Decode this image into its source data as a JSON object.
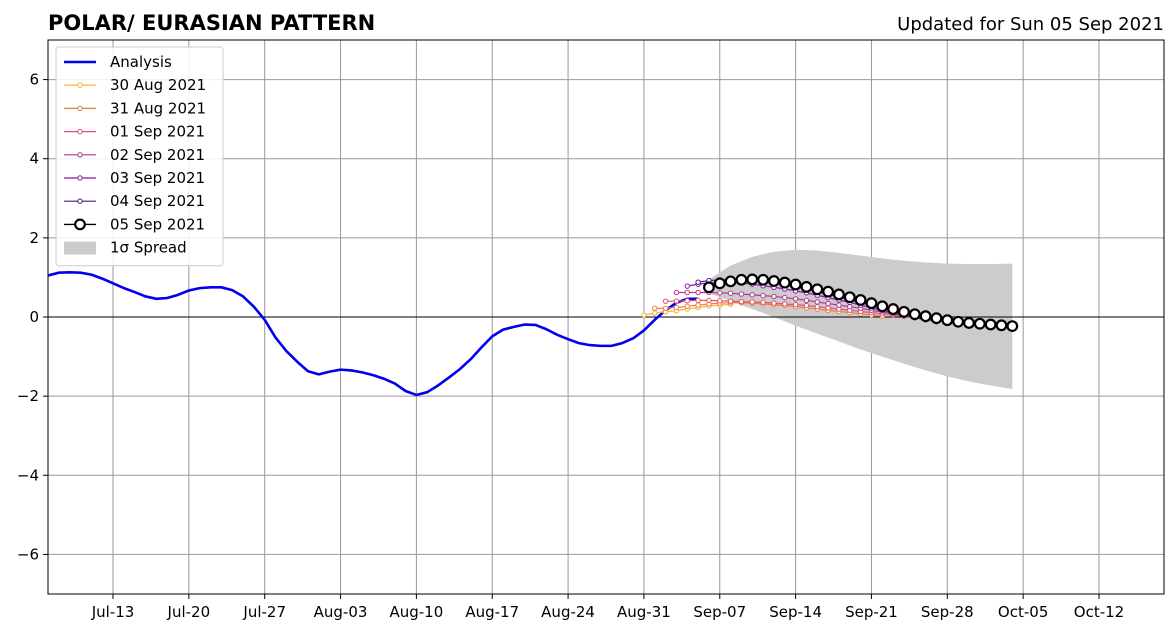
{
  "chart_data": {
    "type": "line",
    "title": "POLAR/ EURASIAN  PATTERN",
    "subtitle": "Updated for Sun 05 Sep 2021",
    "xlabel": "",
    "ylabel": "",
    "xlim": [
      "2021-07-07",
      "2021-10-18"
    ],
    "ylim": [
      -7,
      7
    ],
    "grid": true,
    "legend_position": "top-left",
    "x_ticks": [
      {
        "date": "2021-07-13",
        "label": "Jul-13"
      },
      {
        "date": "2021-07-20",
        "label": "Jul-20"
      },
      {
        "date": "2021-07-27",
        "label": "Jul-27"
      },
      {
        "date": "2021-08-03",
        "label": "Aug-03"
      },
      {
        "date": "2021-08-10",
        "label": "Aug-10"
      },
      {
        "date": "2021-08-17",
        "label": "Aug-17"
      },
      {
        "date": "2021-08-24",
        "label": "Aug-24"
      },
      {
        "date": "2021-08-31",
        "label": "Aug-31"
      },
      {
        "date": "2021-09-07",
        "label": "Sep-07"
      },
      {
        "date": "2021-09-14",
        "label": "Sep-14"
      },
      {
        "date": "2021-09-21",
        "label": "Sep-21"
      },
      {
        "date": "2021-09-28",
        "label": "Sep-28"
      },
      {
        "date": "2021-10-05",
        "label": "Oct-05"
      },
      {
        "date": "2021-10-12",
        "label": "Oct-12"
      }
    ],
    "y_ticks": [
      {
        "value": -6,
        "label": "−6"
      },
      {
        "value": -4,
        "label": "−4"
      },
      {
        "value": -2,
        "label": "−2"
      },
      {
        "value": 0,
        "label": "0"
      },
      {
        "value": 2,
        "label": "2"
      },
      {
        "value": 4,
        "label": "4"
      },
      {
        "value": 6,
        "label": "6"
      }
    ],
    "series": [
      {
        "name": "Analysis",
        "color": "#0000ee",
        "style": "analysis",
        "x": [
          "2021-07-07",
          "2021-07-08",
          "2021-07-09",
          "2021-07-10",
          "2021-07-11",
          "2021-07-12",
          "2021-07-13",
          "2021-07-14",
          "2021-07-15",
          "2021-07-16",
          "2021-07-17",
          "2021-07-18",
          "2021-07-19",
          "2021-07-20",
          "2021-07-21",
          "2021-07-22",
          "2021-07-23",
          "2021-07-24",
          "2021-07-25",
          "2021-07-26",
          "2021-07-27",
          "2021-07-28",
          "2021-07-29",
          "2021-07-30",
          "2021-07-31",
          "2021-08-01",
          "2021-08-02",
          "2021-08-03",
          "2021-08-04",
          "2021-08-05",
          "2021-08-06",
          "2021-08-07",
          "2021-08-08",
          "2021-08-09",
          "2021-08-10",
          "2021-08-11",
          "2021-08-12",
          "2021-08-13",
          "2021-08-14",
          "2021-08-15",
          "2021-08-16",
          "2021-08-17",
          "2021-08-18",
          "2021-08-19",
          "2021-08-20",
          "2021-08-21",
          "2021-08-22",
          "2021-08-23",
          "2021-08-24",
          "2021-08-25",
          "2021-08-26",
          "2021-08-27",
          "2021-08-28",
          "2021-08-29",
          "2021-08-30",
          "2021-08-31",
          "2021-09-01",
          "2021-09-02",
          "2021-09-03",
          "2021-09-04",
          "2021-09-05"
        ],
        "values": [
          1.05,
          1.12,
          1.13,
          1.12,
          1.07,
          0.97,
          0.85,
          0.73,
          0.63,
          0.52,
          0.46,
          0.48,
          0.56,
          0.67,
          0.73,
          0.75,
          0.75,
          0.68,
          0.52,
          0.26,
          -0.07,
          -0.52,
          -0.86,
          -1.13,
          -1.37,
          -1.45,
          -1.38,
          -1.33,
          -1.35,
          -1.4,
          -1.47,
          -1.56,
          -1.68,
          -1.87,
          -1.97,
          -1.9,
          -1.73,
          -1.53,
          -1.32,
          -1.07,
          -0.77,
          -0.49,
          -0.32,
          -0.25,
          -0.19,
          -0.2,
          -0.31,
          -0.45,
          -0.56,
          -0.66,
          -0.71,
          -0.73,
          -0.73,
          -0.66,
          -0.54,
          -0.34,
          -0.07,
          0.17,
          0.36,
          0.46,
          0.46
        ]
      },
      {
        "name": "30 Aug 2021",
        "color": "#f5b13a",
        "style": "forecast",
        "x": [
          "2021-08-31",
          "2021-09-01",
          "2021-09-02",
          "2021-09-03",
          "2021-09-04",
          "2021-09-05",
          "2021-09-06",
          "2021-09-07",
          "2021-09-08"
        ],
        "values": [
          0.05,
          0.1,
          0.13,
          0.16,
          0.2,
          0.24,
          0.28,
          0.3,
          0.32
        ]
      },
      {
        "name": "31 Aug 2021",
        "color": "#f07d3a",
        "style": "forecast",
        "x": [
          "2021-09-01",
          "2021-09-02",
          "2021-09-03",
          "2021-09-04",
          "2021-09-05",
          "2021-09-06",
          "2021-09-07",
          "2021-09-08",
          "2021-09-09",
          "2021-09-10",
          "2021-09-11",
          "2021-09-12",
          "2021-09-13",
          "2021-09-14",
          "2021-09-15",
          "2021-09-16",
          "2021-09-17",
          "2021-09-18",
          "2021-09-19",
          "2021-09-20",
          "2021-09-21",
          "2021-09-22"
        ],
        "values": [
          0.22,
          0.22,
          0.24,
          0.27,
          0.3,
          0.33,
          0.35,
          0.36,
          0.36,
          0.35,
          0.33,
          0.31,
          0.29,
          0.26,
          0.23,
          0.2,
          0.17,
          0.14,
          0.11,
          0.08,
          0.05,
          0.02
        ]
      },
      {
        "name": "01 Sep 2021",
        "color": "#e0526a",
        "style": "forecast",
        "x": [
          "2021-09-02",
          "2021-09-03",
          "2021-09-04",
          "2021-09-05",
          "2021-09-06",
          "2021-09-07",
          "2021-09-08",
          "2021-09-09",
          "2021-09-10",
          "2021-09-11",
          "2021-09-12",
          "2021-09-13",
          "2021-09-14",
          "2021-09-15",
          "2021-09-16",
          "2021-09-17",
          "2021-09-18",
          "2021-09-19",
          "2021-09-20",
          "2021-09-21",
          "2021-09-22",
          "2021-09-23",
          "2021-09-24",
          "2021-09-25",
          "2021-09-26",
          "2021-09-27"
        ],
        "values": [
          0.4,
          0.4,
          0.41,
          0.42,
          0.42,
          0.41,
          0.4,
          0.39,
          0.38,
          0.37,
          0.35,
          0.33,
          0.31,
          0.29,
          0.26,
          0.23,
          0.2,
          0.17,
          0.14,
          0.11,
          0.08,
          0.05,
          0.02,
          -0.02,
          -0.06,
          -0.1
        ]
      },
      {
        "name": "02 Sep 2021",
        "color": "#b63896",
        "style": "forecast",
        "x": [
          "2021-09-03",
          "2021-09-04",
          "2021-09-05",
          "2021-09-06",
          "2021-09-07",
          "2021-09-08",
          "2021-09-09",
          "2021-09-10",
          "2021-09-11",
          "2021-09-12",
          "2021-09-13",
          "2021-09-14",
          "2021-09-15",
          "2021-09-16",
          "2021-09-17",
          "2021-09-18",
          "2021-09-19",
          "2021-09-20",
          "2021-09-21",
          "2021-09-22",
          "2021-09-23",
          "2021-09-24",
          "2021-09-25",
          "2021-09-26",
          "2021-09-27"
        ],
        "values": [
          0.62,
          0.62,
          0.62,
          0.62,
          0.61,
          0.6,
          0.58,
          0.56,
          0.54,
          0.52,
          0.49,
          0.46,
          0.42,
          0.38,
          0.34,
          0.3,
          0.26,
          0.22,
          0.17,
          0.13,
          0.08,
          0.03,
          -0.02,
          -0.07,
          -0.12
        ]
      },
      {
        "name": "03 Sep 2021",
        "color": "#8c1aa8",
        "style": "forecast",
        "x": [
          "2021-09-04",
          "2021-09-05",
          "2021-09-06",
          "2021-09-07",
          "2021-09-08",
          "2021-09-09",
          "2021-09-10",
          "2021-09-11",
          "2021-09-12",
          "2021-09-13",
          "2021-09-14",
          "2021-09-15",
          "2021-09-16",
          "2021-09-17",
          "2021-09-18",
          "2021-09-19",
          "2021-09-20",
          "2021-09-21",
          "2021-09-22",
          "2021-09-23",
          "2021-09-24",
          "2021-09-25",
          "2021-09-26"
        ],
        "values": [
          0.78,
          0.83,
          0.86,
          0.88,
          0.88,
          0.86,
          0.83,
          0.79,
          0.75,
          0.71,
          0.66,
          0.61,
          0.55,
          0.49,
          0.43,
          0.37,
          0.3,
          0.23,
          0.17,
          0.11,
          0.05,
          -0.01,
          -0.07
        ]
      },
      {
        "name": "04 Sep 2021",
        "color": "#4b1a8c",
        "style": "forecast",
        "x": [
          "2021-09-05",
          "2021-09-06",
          "2021-09-07",
          "2021-09-08",
          "2021-09-09",
          "2021-09-10",
          "2021-09-11",
          "2021-09-12",
          "2021-09-13",
          "2021-09-14",
          "2021-09-15",
          "2021-09-16",
          "2021-09-17",
          "2021-09-18",
          "2021-09-19",
          "2021-09-20",
          "2021-09-21",
          "2021-09-22",
          "2021-09-23",
          "2021-09-24",
          "2021-09-25",
          "2021-09-26"
        ],
        "values": [
          0.88,
          0.92,
          0.94,
          0.95,
          0.95,
          0.93,
          0.9,
          0.86,
          0.81,
          0.76,
          0.7,
          0.64,
          0.57,
          0.5,
          0.43,
          0.36,
          0.29,
          0.22,
          0.15,
          0.08,
          0.02,
          -0.04
        ]
      },
      {
        "name": "05 Sep 2021",
        "color": "#000000",
        "style": "latest",
        "x": [
          "2021-09-06",
          "2021-09-07",
          "2021-09-08",
          "2021-09-09",
          "2021-09-10",
          "2021-09-11",
          "2021-09-12",
          "2021-09-13",
          "2021-09-14",
          "2021-09-15",
          "2021-09-16",
          "2021-09-17",
          "2021-09-18",
          "2021-09-19",
          "2021-09-20",
          "2021-09-21",
          "2021-09-22",
          "2021-09-23",
          "2021-09-24",
          "2021-09-25",
          "2021-09-26",
          "2021-09-27",
          "2021-09-28",
          "2021-09-29",
          "2021-09-30",
          "2021-10-01",
          "2021-10-02",
          "2021-10-03",
          "2021-10-04"
        ],
        "values": [
          0.75,
          0.85,
          0.9,
          0.94,
          0.95,
          0.94,
          0.91,
          0.87,
          0.82,
          0.76,
          0.7,
          0.64,
          0.57,
          0.5,
          0.43,
          0.35,
          0.27,
          0.2,
          0.13,
          0.07,
          0.02,
          -0.03,
          -0.08,
          -0.12,
          -0.15,
          -0.17,
          -0.19,
          -0.21,
          -0.23
        ]
      }
    ],
    "spread": {
      "name": "1σ Spread",
      "color": "#cccccc",
      "x": [
        "2021-09-06",
        "2021-09-08",
        "2021-09-10",
        "2021-09-12",
        "2021-09-14",
        "2021-09-16",
        "2021-09-18",
        "2021-09-20",
        "2021-09-22",
        "2021-09-24",
        "2021-09-26",
        "2021-09-28",
        "2021-09-30",
        "2021-10-02",
        "2021-10-04"
      ],
      "upper": [
        0.95,
        1.3,
        1.52,
        1.65,
        1.7,
        1.68,
        1.62,
        1.55,
        1.48,
        1.42,
        1.38,
        1.35,
        1.34,
        1.34,
        1.35
      ],
      "lower": [
        0.6,
        0.4,
        0.2,
        0.0,
        -0.22,
        -0.42,
        -0.62,
        -0.82,
        -1.0,
        -1.18,
        -1.35,
        -1.5,
        -1.63,
        -1.73,
        -1.82
      ]
    }
  }
}
